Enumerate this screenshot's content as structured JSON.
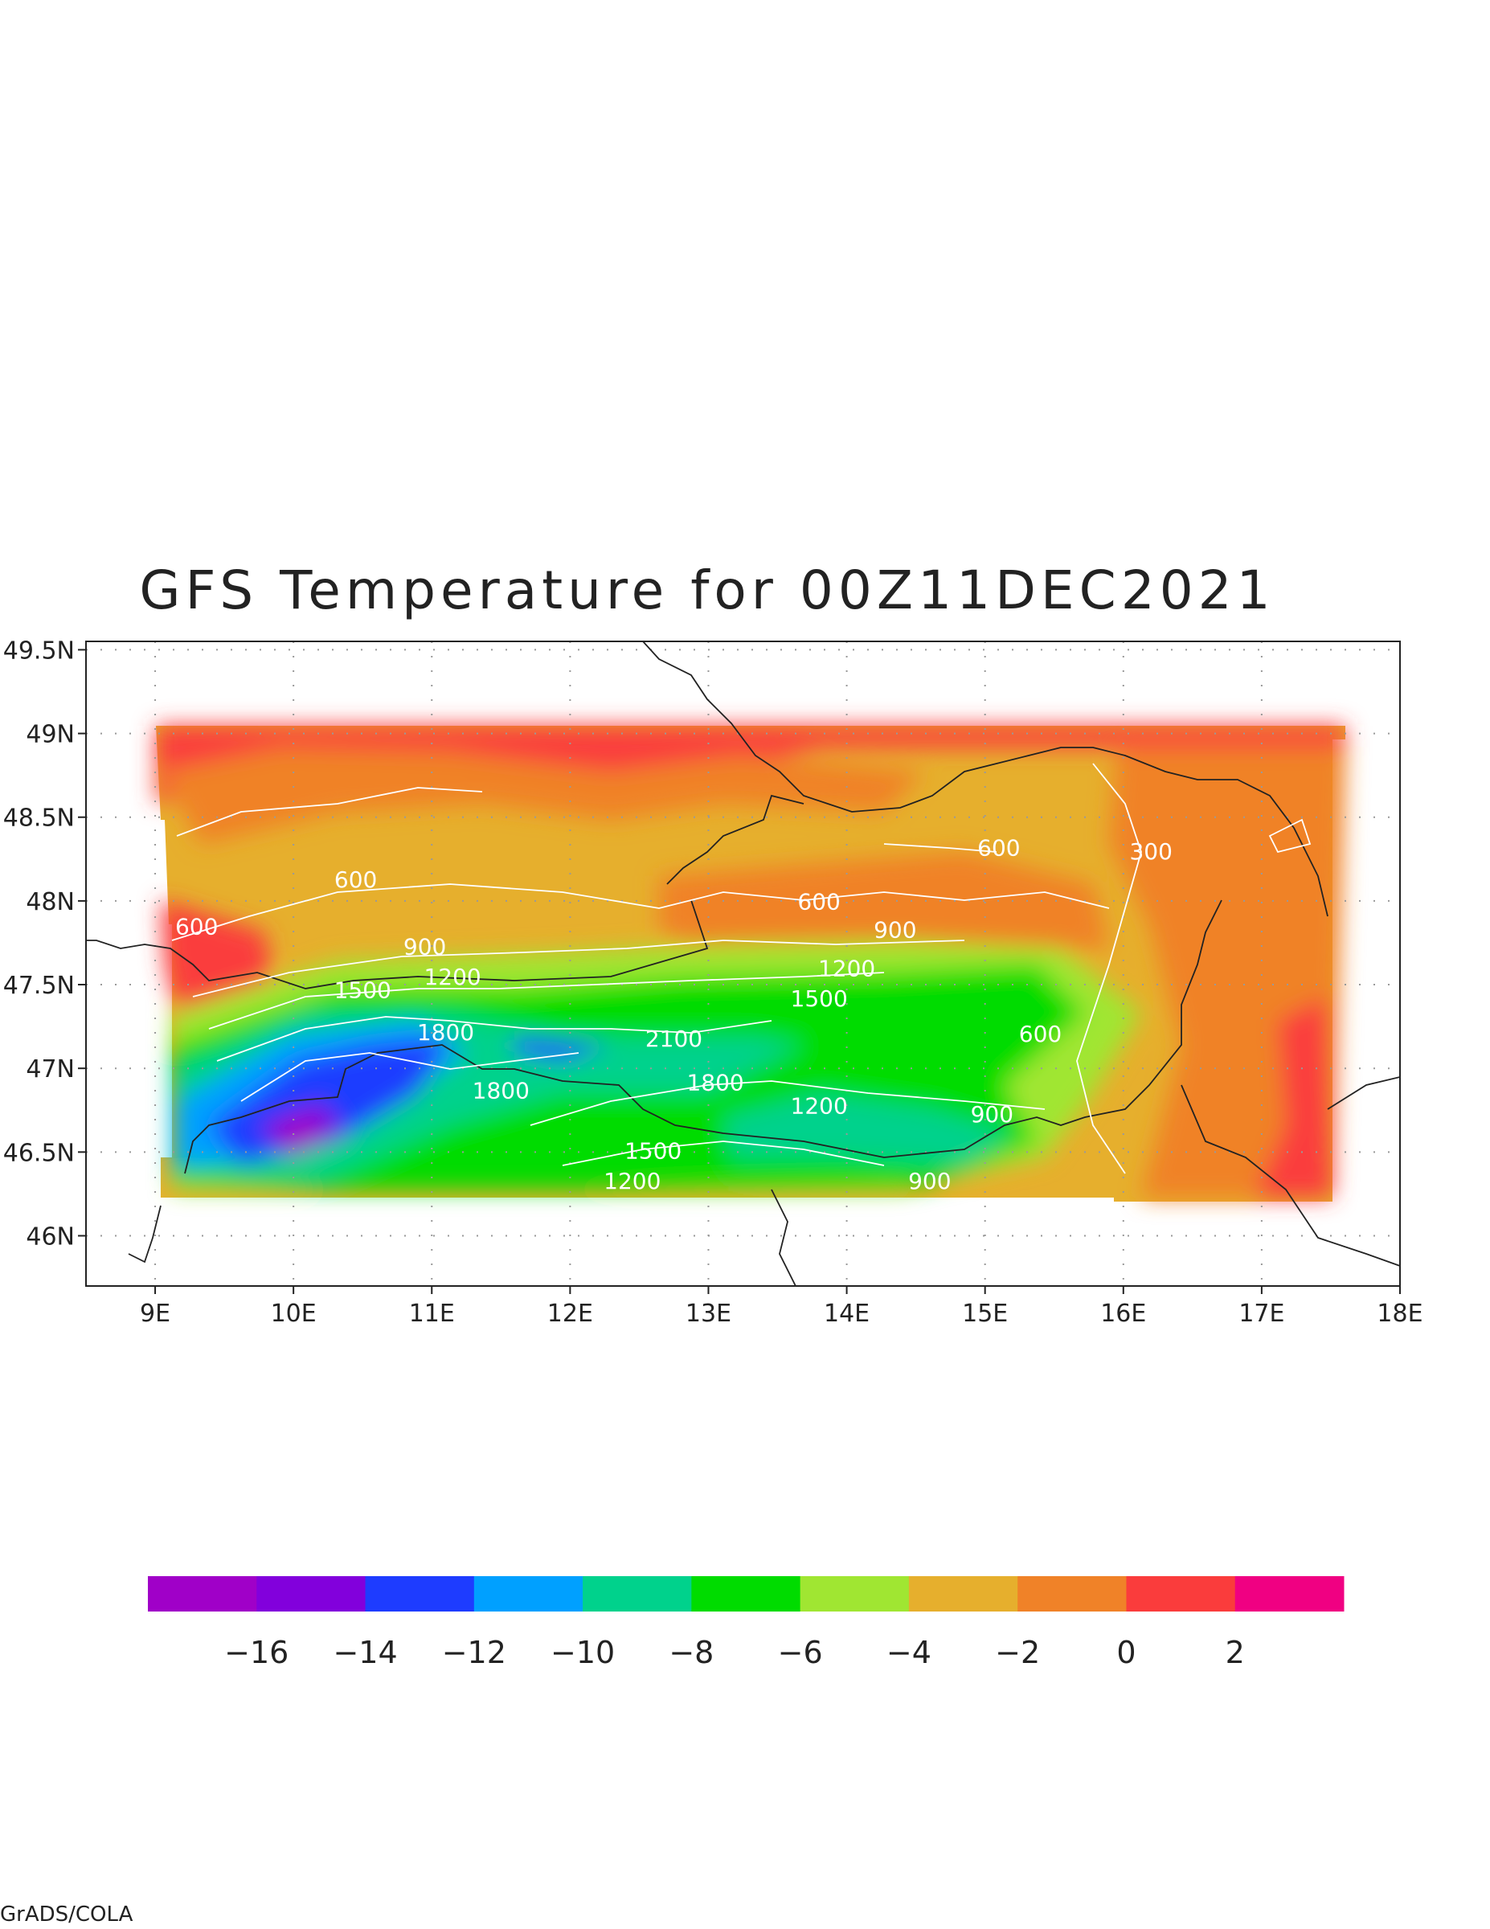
{
  "title": "GFS Temperature for 00Z11DEC2021",
  "credit": "GrADS/COLA",
  "chart_data": {
    "type": "heatmap",
    "title": "GFS Temperature for 00Z11DEC2021",
    "x_ticks": [
      "9E",
      "10E",
      "11E",
      "12E",
      "13E",
      "14E",
      "15E",
      "16E",
      "17E",
      "18E"
    ],
    "y_ticks": [
      "49.5N",
      "49N",
      "48.5N",
      "48N",
      "47.5N",
      "47N",
      "46.5N",
      "46N"
    ],
    "lon_range": [
      8.5,
      18
    ],
    "lat_range": [
      45.7,
      49.55
    ],
    "grid": "dotted",
    "colorbar": {
      "labels": [
        "-16",
        "-14",
        "-12",
        "-10",
        "-8",
        "-6",
        "-4",
        "-2",
        "0",
        "2"
      ],
      "bins": [
        -18,
        -16,
        -14,
        -12,
        -10,
        -8,
        -6,
        -4,
        -2,
        0,
        2,
        4
      ],
      "colors": [
        "#a000c8",
        "#8200dc",
        "#1e3cff",
        "#00a0ff",
        "#00d28c",
        "#00dc00",
        "#a0e632",
        "#e6af2d",
        "#f08228",
        "#fa3c3c",
        "#f00082"
      ]
    },
    "contour_labels": [
      {
        "text": "600",
        "lon": 9.3,
        "lat": 47.8
      },
      {
        "text": "600",
        "lon": 10.45,
        "lat": 48.08
      },
      {
        "text": "900",
        "lon": 10.95,
        "lat": 47.68
      },
      {
        "text": "1200",
        "lon": 11.15,
        "lat": 47.5
      },
      {
        "text": "1500",
        "lon": 10.5,
        "lat": 47.42
      },
      {
        "text": "1800",
        "lon": 11.1,
        "lat": 47.17
      },
      {
        "text": "1800",
        "lon": 11.5,
        "lat": 46.82
      },
      {
        "text": "2100",
        "lon": 12.75,
        "lat": 47.13
      },
      {
        "text": "1800",
        "lon": 13.05,
        "lat": 46.87
      },
      {
        "text": "1500",
        "lon": 13.8,
        "lat": 47.37
      },
      {
        "text": "1200",
        "lon": 14.0,
        "lat": 47.55
      },
      {
        "text": "1200",
        "lon": 13.8,
        "lat": 46.73
      },
      {
        "text": "1500",
        "lon": 12.6,
        "lat": 46.46
      },
      {
        "text": "1200",
        "lon": 12.45,
        "lat": 46.28
      },
      {
        "text": "900",
        "lon": 14.35,
        "lat": 47.78
      },
      {
        "text": "600",
        "lon": 13.8,
        "lat": 47.95
      },
      {
        "text": "600",
        "lon": 15.1,
        "lat": 48.27
      },
      {
        "text": "300",
        "lon": 16.2,
        "lat": 48.25
      },
      {
        "text": "600",
        "lon": 15.4,
        "lat": 47.16
      },
      {
        "text": "900",
        "lon": 15.05,
        "lat": 46.68
      },
      {
        "text": "900",
        "lon": 14.6,
        "lat": 46.28
      }
    ]
  }
}
